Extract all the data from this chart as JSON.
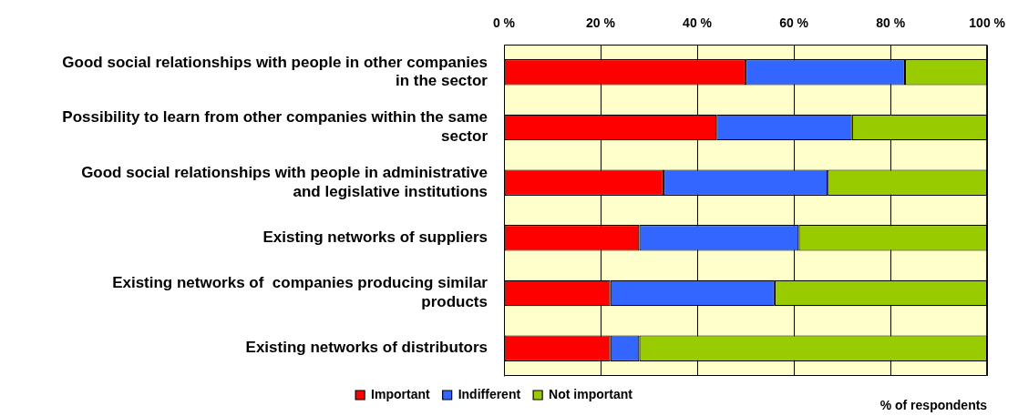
{
  "chart_data": {
    "type": "bar",
    "orientation": "horizontal",
    "stacked": true,
    "categories": [
      "Good social relationships with people in other companies in the sector",
      "Possibility to learn from other companies within the same sector",
      "Good social relationships with people in administrative and legislative institutions",
      "Existing networks of suppliers",
      "Existing networks of  companies producing similar products",
      "Existing networks of distributors"
    ],
    "series": [
      {
        "name": "Important",
        "color": "#ff0000",
        "values": [
          50,
          44,
          33,
          28,
          22,
          22
        ]
      },
      {
        "name": "Indifferent",
        "color": "#3366ff",
        "values": [
          33,
          28,
          34,
          33,
          34,
          6
        ]
      },
      {
        "name": "Not important",
        "color": "#99cc00",
        "values": [
          17,
          28,
          33,
          39,
          44,
          72
        ]
      }
    ],
    "xlim": [
      0,
      100
    ],
    "xticks": [
      {
        "value": 0,
        "label": "0 %"
      },
      {
        "value": 20,
        "label": "20 %"
      },
      {
        "value": 40,
        "label": "40 %"
      },
      {
        "value": 60,
        "label": "60 %"
      },
      {
        "value": 80,
        "label": "80 %"
      },
      {
        "value": 100,
        "label": "100 %"
      }
    ],
    "annotations": [
      "% of respondents"
    ],
    "grid": "x",
    "legend": "bottom"
  }
}
